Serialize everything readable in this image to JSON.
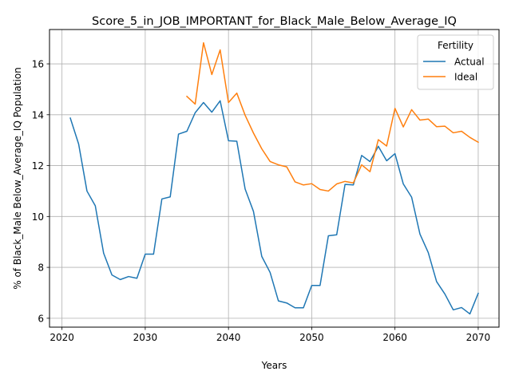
{
  "chart_data": {
    "type": "line",
    "title": "Score_5_in_JOB_IMPORTANT_for_Black_Male_Below_Average_IQ",
    "xlabel": "Years",
    "ylabel": "% of Black_Male Below_Average_IQ Population",
    "xlim": [
      2018.5,
      2072.5
    ],
    "ylim": [
      5.65,
      17.35
    ],
    "xticks": [
      2020,
      2030,
      2040,
      2050,
      2060,
      2070
    ],
    "yticks": [
      6,
      8,
      10,
      12,
      14,
      16
    ],
    "grid": true,
    "legend": {
      "title": "Fertility",
      "placement": "top-right"
    },
    "series": [
      {
        "name": "Actual",
        "color": "#1f77b4",
        "x": [
          2021,
          2022,
          2023,
          2024,
          2025,
          2026,
          2027,
          2028,
          2029,
          2030,
          2031,
          2032,
          2033,
          2034,
          2035,
          2036,
          2037,
          2038,
          2039,
          2040,
          2041,
          2042,
          2043,
          2044,
          2045,
          2046,
          2047,
          2048,
          2049,
          2050,
          2051,
          2052,
          2053,
          2054,
          2055,
          2056,
          2057,
          2058,
          2059,
          2060,
          2061,
          2062,
          2063,
          2064,
          2065,
          2066,
          2067,
          2068,
          2069,
          2070
        ],
        "values": [
          13.87,
          12.85,
          11.0,
          10.42,
          8.56,
          7.7,
          7.52,
          7.64,
          7.57,
          8.52,
          8.52,
          10.69,
          10.77,
          13.24,
          13.35,
          14.08,
          14.48,
          14.1,
          14.55,
          12.98,
          12.96,
          11.08,
          10.2,
          8.43,
          7.8,
          6.68,
          6.6,
          6.41,
          6.41,
          7.29,
          7.29,
          9.24,
          9.28,
          11.26,
          11.24,
          12.4,
          12.16,
          12.76,
          12.19,
          12.47,
          11.28,
          10.76,
          9.31,
          8.58,
          7.44,
          6.95,
          6.33,
          6.42,
          6.17,
          6.98
        ]
      },
      {
        "name": "Ideal",
        "color": "#ff7f0e",
        "x": [
          2035,
          2036,
          2037,
          2038,
          2039,
          2040,
          2041,
          2042,
          2043,
          2044,
          2045,
          2046,
          2047,
          2048,
          2049,
          2050,
          2051,
          2052,
          2053,
          2054,
          2055,
          2056,
          2057,
          2058,
          2059,
          2060,
          2061,
          2062,
          2063,
          2064,
          2065,
          2066,
          2067,
          2068,
          2069,
          2070
        ],
        "values": [
          14.72,
          14.42,
          16.83,
          15.58,
          16.55,
          14.48,
          14.85,
          13.98,
          13.28,
          12.66,
          12.16,
          12.03,
          11.95,
          11.36,
          11.24,
          11.29,
          11.06,
          11.0,
          11.28,
          11.38,
          11.32,
          12.03,
          11.76,
          13.02,
          12.77,
          14.25,
          13.52,
          14.2,
          13.79,
          13.83,
          13.53,
          13.55,
          13.29,
          13.35,
          13.11,
          12.92
        ]
      }
    ]
  }
}
